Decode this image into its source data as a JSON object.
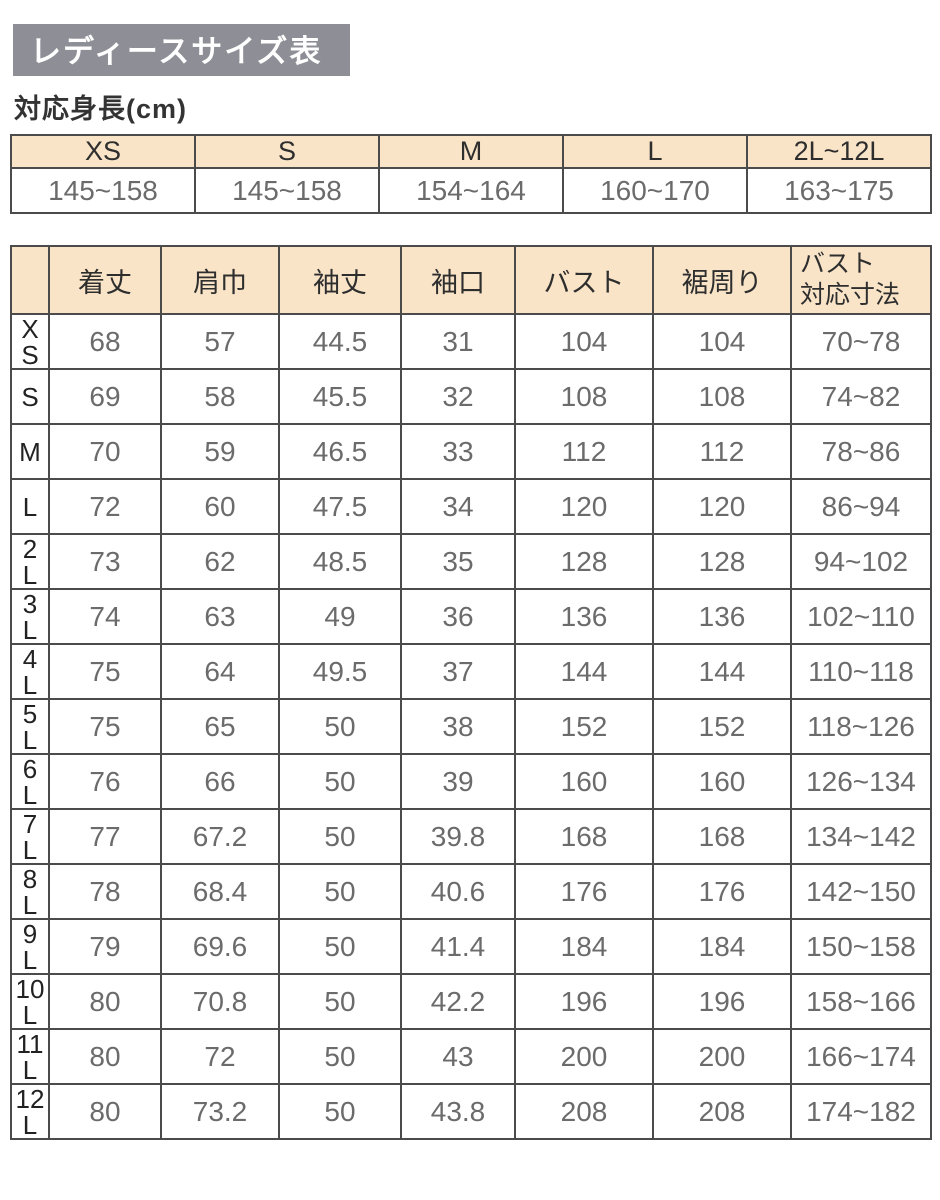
{
  "title": "レディースサイズ表",
  "subtitle": "対応身長(cm)",
  "colors": {
    "title_background": "#8e8e96",
    "title_text": "#ffffff",
    "header_background": "#f9e4c8",
    "border": "#4b4b4b",
    "value_text": "#6b6b6b",
    "label_text": "#2e2e2e"
  },
  "height_table": {
    "sizes": [
      "XS",
      "S",
      "M",
      "L",
      "2L~12L"
    ],
    "ranges": [
      "145~158",
      "145~158",
      "154~164",
      "160~170",
      "163~175"
    ]
  },
  "size_table": {
    "corner": "",
    "columns": [
      "着丈",
      "肩巾",
      "袖丈",
      "袖口",
      "バスト",
      "裾周り",
      "バスト\n対応寸法"
    ],
    "rows": [
      {
        "size": "X\nS",
        "values": [
          "68",
          "57",
          "44.5",
          "31",
          "104",
          "104",
          "70~78"
        ]
      },
      {
        "size": "S",
        "values": [
          "69",
          "58",
          "45.5",
          "32",
          "108",
          "108",
          "74~82"
        ]
      },
      {
        "size": "M",
        "values": [
          "70",
          "59",
          "46.5",
          "33",
          "112",
          "112",
          "78~86"
        ]
      },
      {
        "size": "L",
        "values": [
          "72",
          "60",
          "47.5",
          "34",
          "120",
          "120",
          "86~94"
        ]
      },
      {
        "size": "2\nL",
        "values": [
          "73",
          "62",
          "48.5",
          "35",
          "128",
          "128",
          "94~102"
        ]
      },
      {
        "size": "3\nL",
        "values": [
          "74",
          "63",
          "49",
          "36",
          "136",
          "136",
          "102~110"
        ]
      },
      {
        "size": "4\nL",
        "values": [
          "75",
          "64",
          "49.5",
          "37",
          "144",
          "144",
          "110~118"
        ]
      },
      {
        "size": "5\nL",
        "values": [
          "75",
          "65",
          "50",
          "38",
          "152",
          "152",
          "118~126"
        ]
      },
      {
        "size": "6\nL",
        "values": [
          "76",
          "66",
          "50",
          "39",
          "160",
          "160",
          "126~134"
        ]
      },
      {
        "size": "7\nL",
        "values": [
          "77",
          "67.2",
          "50",
          "39.8",
          "168",
          "168",
          "134~142"
        ]
      },
      {
        "size": "8\nL",
        "values": [
          "78",
          "68.4",
          "50",
          "40.6",
          "176",
          "176",
          "142~150"
        ]
      },
      {
        "size": "9\nL",
        "values": [
          "79",
          "69.6",
          "50",
          "41.4",
          "184",
          "184",
          "150~158"
        ]
      },
      {
        "size": "10\nL",
        "values": [
          "80",
          "70.8",
          "50",
          "42.2",
          "196",
          "196",
          "158~166"
        ]
      },
      {
        "size": "11\nL",
        "values": [
          "80",
          "72",
          "50",
          "43",
          "200",
          "200",
          "166~174"
        ]
      },
      {
        "size": "12\nL",
        "values": [
          "80",
          "73.2",
          "50",
          "43.8",
          "208",
          "208",
          "174~182"
        ]
      }
    ]
  }
}
